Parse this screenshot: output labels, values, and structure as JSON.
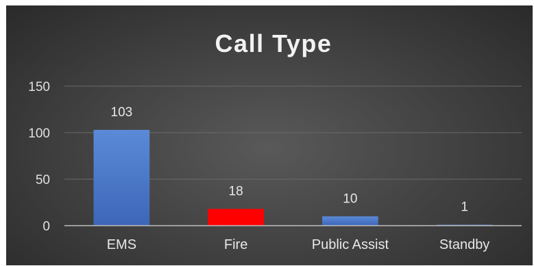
{
  "chart_data": {
    "type": "bar",
    "title": "Call Type",
    "categories": [
      "EMS",
      "Fire",
      "Public Assist",
      "Standby"
    ],
    "values": [
      103,
      18,
      10,
      1
    ],
    "data_labels": [
      "103",
      "18",
      "10",
      "1"
    ],
    "bar_colors": [
      "#4472c4",
      "#ff0000",
      "#4472c4",
      "#4472c4"
    ],
    "ylim": [
      0,
      150
    ],
    "yticks": [
      0,
      50,
      100,
      150
    ],
    "ytick_labels": [
      "0",
      "50",
      "100",
      "150"
    ],
    "grid": true,
    "legend": "none",
    "background": "#404040"
  }
}
